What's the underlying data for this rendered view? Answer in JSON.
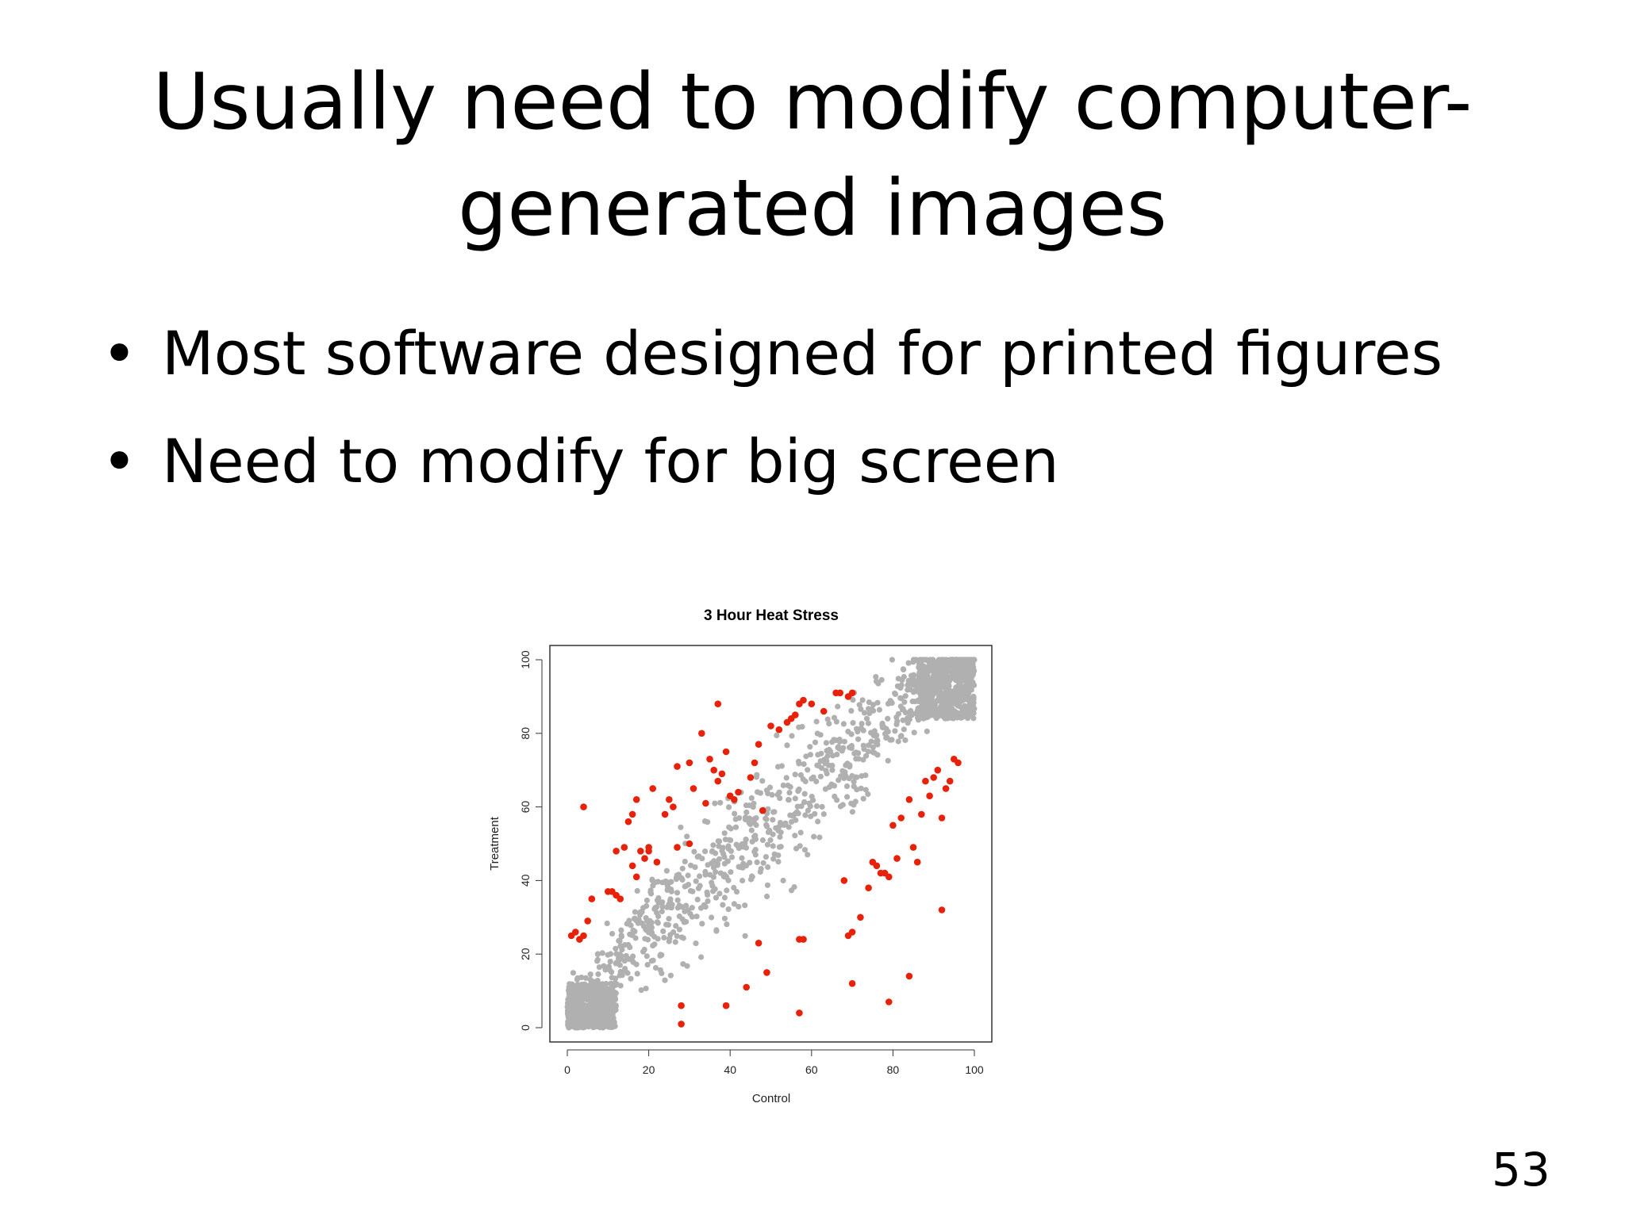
{
  "slide": {
    "title_line1": "Usually need to modify computer-",
    "title_line2": "generated images",
    "bullets": [
      "Most software designed for printed figures",
      "Need to modify for big screen"
    ],
    "bullet_glyph": "•",
    "page_number": "53"
  },
  "chart_data": {
    "type": "scatter",
    "title": "3 Hour Heat Stress",
    "xlabel": "Control",
    "ylabel": "Treatment",
    "xlim": [
      0,
      100
    ],
    "ylim": [
      0,
      100
    ],
    "xticks": [
      "0",
      "20",
      "40",
      "60",
      "80",
      "100"
    ],
    "yticks": [
      "0",
      "20",
      "40",
      "60",
      "80",
      "100"
    ],
    "grid": false,
    "colors": {
      "background_points": "#b0b0b0",
      "highlight_points": "#e8220a"
    },
    "series": [
      {
        "values": [
          [
            1,
            25
          ],
          [
            2,
            26
          ],
          [
            3,
            24
          ],
          [
            4,
            25
          ],
          [
            4,
            60
          ],
          [
            6,
            35
          ],
          [
            5,
            29
          ],
          [
            10,
            37
          ],
          [
            11,
            37
          ],
          [
            12,
            36
          ],
          [
            13,
            35
          ],
          [
            12,
            48
          ],
          [
            14,
            49
          ],
          [
            15,
            56
          ],
          [
            16,
            58
          ],
          [
            16,
            44
          ],
          [
            17,
            62
          ],
          [
            18,
            48
          ],
          [
            17,
            41
          ],
          [
            19,
            46
          ],
          [
            20,
            48
          ],
          [
            21,
            65
          ],
          [
            22,
            45
          ],
          [
            24,
            58
          ],
          [
            25,
            62
          ],
          [
            26,
            60
          ],
          [
            27,
            71
          ],
          [
            27,
            49
          ],
          [
            28,
            6
          ],
          [
            30,
            72
          ],
          [
            31,
            65
          ],
          [
            33,
            80
          ],
          [
            34,
            61
          ],
          [
            35,
            73
          ],
          [
            36,
            70
          ],
          [
            37,
            67
          ],
          [
            37,
            88
          ],
          [
            38,
            69
          ],
          [
            39,
            75
          ],
          [
            40,
            63
          ],
          [
            41,
            62
          ],
          [
            42,
            64
          ],
          [
            45,
            68
          ],
          [
            46,
            72
          ],
          [
            47,
            77
          ],
          [
            48,
            59
          ],
          [
            50,
            82
          ],
          [
            52,
            81
          ],
          [
            54,
            83
          ],
          [
            55,
            84
          ],
          [
            56,
            85
          ],
          [
            57,
            88
          ],
          [
            58,
            89
          ],
          [
            60,
            88
          ],
          [
            63,
            86
          ],
          [
            66,
            91
          ],
          [
            67,
            91
          ],
          [
            69,
            90
          ],
          [
            70,
            91
          ],
          [
            69,
            25
          ],
          [
            70,
            26
          ],
          [
            72,
            30
          ],
          [
            74,
            38
          ],
          [
            75,
            45
          ],
          [
            76,
            44
          ],
          [
            77,
            42
          ],
          [
            78,
            42
          ],
          [
            79,
            41
          ],
          [
            80,
            55
          ],
          [
            81,
            46
          ],
          [
            82,
            57
          ],
          [
            84,
            62
          ],
          [
            85,
            49
          ],
          [
            86,
            45
          ],
          [
            87,
            58
          ],
          [
            88,
            67
          ],
          [
            89,
            63
          ],
          [
            90,
            68
          ],
          [
            91,
            70
          ],
          [
            92,
            57
          ],
          [
            93,
            65
          ],
          [
            94,
            67
          ],
          [
            95,
            73
          ],
          [
            96,
            72
          ],
          [
            92,
            32
          ],
          [
            57,
            4
          ],
          [
            49,
            15
          ],
          [
            44,
            11
          ],
          [
            39,
            6
          ],
          [
            28,
            1
          ],
          [
            57,
            24
          ],
          [
            58,
            24
          ],
          [
            68,
            40
          ],
          [
            70,
            12
          ],
          [
            79,
            7
          ],
          [
            84,
            14
          ],
          [
            47,
            23
          ],
          [
            30,
            50
          ],
          [
            20,
            49
          ]
        ]
      }
    ]
  }
}
